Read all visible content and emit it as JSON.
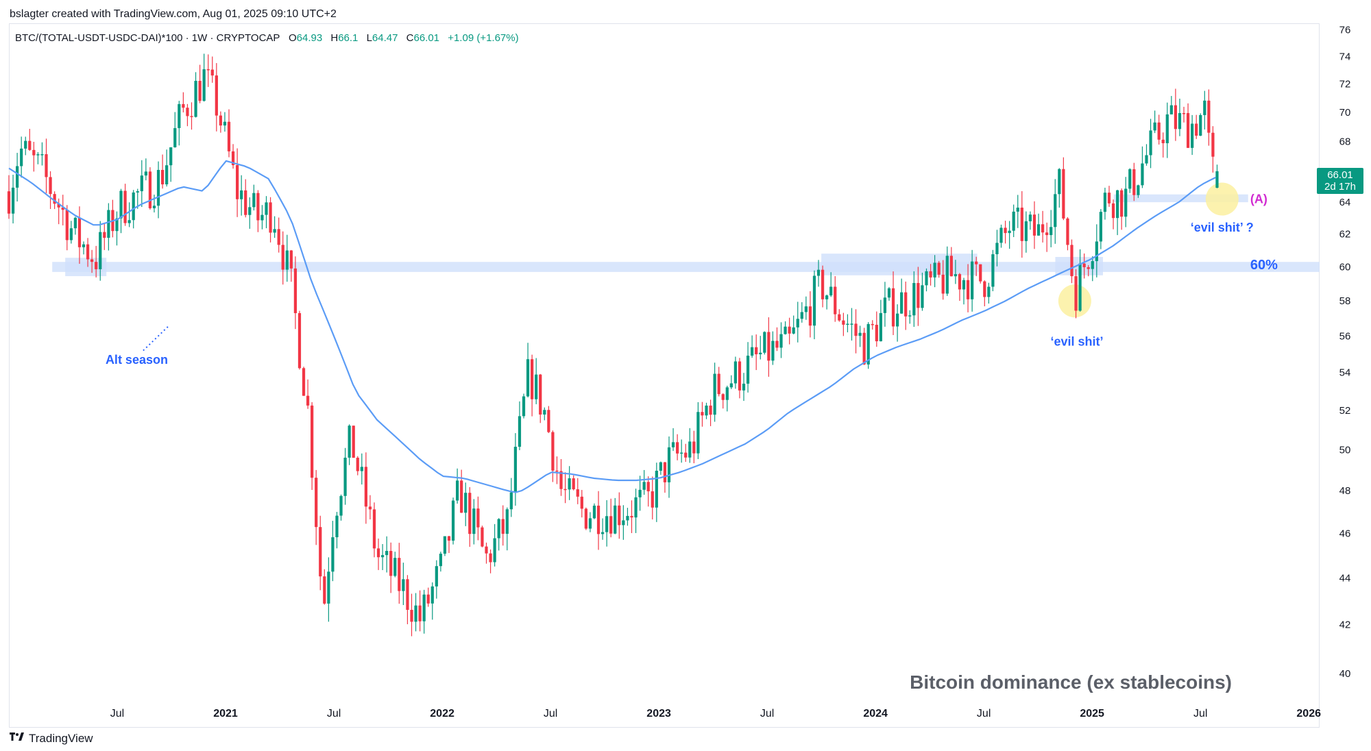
{
  "header": {
    "credit": "bslagter created with TradingView.com, Aug 01, 2025 09:10 UTC+2",
    "symbol_line": "BTC/(TOTAL-USDT-USDC-DAI)*100 · 1W · CRYPTOCAP",
    "ohlc": {
      "o_label": "O",
      "o": "64.93",
      "h_label": "H",
      "h": "66.1",
      "l_label": "L",
      "l": "64.47",
      "c_label": "C",
      "c": "66.01",
      "change": "+1.09 (+1.67%)"
    }
  },
  "price_tag": {
    "price": "66.01",
    "countdown": "2d 17h"
  },
  "brand": {
    "name": "TradingView"
  },
  "colors": {
    "up": "#089981",
    "down": "#f23645",
    "ma": "#5b9cf6",
    "zone": "#cfe0fb",
    "highlight": "#fbf0a0",
    "annotation": "#2962ff",
    "magenta": "#d12bd1",
    "title": "#5b5f68"
  },
  "chart_data": {
    "type": "candlestick",
    "title": "Bitcoin dominance (ex stablecoins)",
    "ylim": [
      39,
      76.5
    ],
    "y_ticks": [
      40,
      42,
      44,
      46,
      48,
      50,
      52,
      54,
      56,
      58,
      60,
      62,
      64,
      66,
      68,
      70,
      72,
      74,
      76
    ],
    "log_scale": true,
    "x_tick_labels": [
      "Jul",
      "2021",
      "Jul",
      "2022",
      "Jul",
      "2023",
      "Jul",
      "2024",
      "Jul",
      "2025",
      "Jul",
      "2026"
    ],
    "x_tick_years": [
      2020.5,
      2021.0,
      2021.5,
      2022.0,
      2022.5,
      2023.0,
      2023.5,
      2024.0,
      2024.5,
      2025.0,
      2025.5,
      2026.0
    ],
    "x_tick_bold": [
      false,
      true,
      false,
      true,
      false,
      true,
      false,
      true,
      false,
      true,
      false,
      true
    ],
    "x_range_years": [
      2020.0,
      2026.05
    ],
    "path_anchors": [
      [
        2020.0,
        64.7
      ],
      [
        2020.05,
        67.5
      ],
      [
        2020.15,
        66.0
      ],
      [
        2020.3,
        62.0
      ],
      [
        2020.4,
        60.5
      ],
      [
        2020.5,
        63.5
      ],
      [
        2020.6,
        64.5
      ],
      [
        2020.7,
        65.5
      ],
      [
        2020.8,
        70.0
      ],
      [
        2020.9,
        72.5
      ],
      [
        2020.96,
        70.5
      ],
      [
        2021.05,
        64.8
      ],
      [
        2021.15,
        63.0
      ],
      [
        2021.22,
        63.5
      ],
      [
        2021.3,
        59.0
      ],
      [
        2021.38,
        52.0
      ],
      [
        2021.45,
        42.5
      ],
      [
        2021.5,
        47.0
      ],
      [
        2021.58,
        50.5
      ],
      [
        2021.7,
        45.0
      ],
      [
        2021.82,
        43.5
      ],
      [
        2021.9,
        42.2
      ],
      [
        2022.0,
        44.5
      ],
      [
        2022.08,
        48.0
      ],
      [
        2022.2,
        44.8
      ],
      [
        2022.3,
        46.5
      ],
      [
        2022.4,
        54.0
      ],
      [
        2022.47,
        52.0
      ],
      [
        2022.55,
        48.0
      ],
      [
        2022.65,
        47.0
      ],
      [
        2022.8,
        47.0
      ],
      [
        2022.95,
        47.5
      ],
      [
        2023.05,
        49.5
      ],
      [
        2023.15,
        50.0
      ],
      [
        2023.25,
        53.0
      ],
      [
        2023.38,
        54.0
      ],
      [
        2023.48,
        55.0
      ],
      [
        2023.6,
        55.5
      ],
      [
        2023.75,
        59.0
      ],
      [
        2023.85,
        57.0
      ],
      [
        2023.95,
        55.5
      ],
      [
        2024.05,
        57.5
      ],
      [
        2024.2,
        58.5
      ],
      [
        2024.35,
        59.5
      ],
      [
        2024.5,
        59.2
      ],
      [
        2024.62,
        62.5
      ],
      [
        2024.75,
        62.0
      ],
      [
        2024.85,
        65.0
      ],
      [
        2024.92,
        58.5
      ],
      [
        2025.0,
        61.5
      ],
      [
        2025.07,
        64.5
      ],
      [
        2025.15,
        64.2
      ],
      [
        2025.25,
        67.0
      ],
      [
        2025.35,
        69.5
      ],
      [
        2025.45,
        69.0
      ],
      [
        2025.52,
        70.0
      ],
      [
        2025.55,
        66.0
      ],
      [
        2025.57,
        66.0
      ]
    ],
    "moving_average": {
      "period_weeks": 50,
      "anchors": [
        [
          2020.0,
          66.2
        ],
        [
          2020.1,
          65.3
        ],
        [
          2020.2,
          64.2
        ],
        [
          2020.3,
          63.2
        ],
        [
          2020.4,
          62.5
        ],
        [
          2020.5,
          62.9
        ],
        [
          2020.6,
          63.8
        ],
        [
          2020.7,
          64.4
        ],
        [
          2020.8,
          65.0
        ],
        [
          2020.9,
          64.7
        ],
        [
          2021.0,
          66.7
        ],
        [
          2021.1,
          66.3
        ],
        [
          2021.2,
          65.5
        ],
        [
          2021.3,
          63.0
        ],
        [
          2021.4,
          59.0
        ],
        [
          2021.5,
          56.0
        ],
        [
          2021.6,
          53.0
        ],
        [
          2021.7,
          51.5
        ],
        [
          2021.8,
          50.5
        ],
        [
          2021.9,
          49.5
        ],
        [
          2022.0,
          48.7
        ],
        [
          2022.1,
          48.6
        ],
        [
          2022.2,
          48.3
        ],
        [
          2022.3,
          48.0
        ],
        [
          2022.35,
          47.9
        ],
        [
          2022.4,
          48.2
        ],
        [
          2022.5,
          48.9
        ],
        [
          2022.6,
          48.8
        ],
        [
          2022.7,
          48.6
        ],
        [
          2022.8,
          48.5
        ],
        [
          2022.9,
          48.5
        ],
        [
          2023.0,
          48.6
        ],
        [
          2023.1,
          48.9
        ],
        [
          2023.2,
          49.3
        ],
        [
          2023.3,
          49.8
        ],
        [
          2023.4,
          50.3
        ],
        [
          2023.5,
          51.0
        ],
        [
          2023.6,
          51.9
        ],
        [
          2023.7,
          52.6
        ],
        [
          2023.8,
          53.3
        ],
        [
          2023.9,
          54.2
        ],
        [
          2024.0,
          54.9
        ],
        [
          2024.1,
          55.4
        ],
        [
          2024.2,
          55.8
        ],
        [
          2024.3,
          56.3
        ],
        [
          2024.4,
          56.9
        ],
        [
          2024.5,
          57.4
        ],
        [
          2024.6,
          58.0
        ],
        [
          2024.7,
          58.7
        ],
        [
          2024.8,
          59.3
        ],
        [
          2024.9,
          59.9
        ],
        [
          2025.0,
          60.5
        ],
        [
          2025.1,
          61.3
        ],
        [
          2025.2,
          62.3
        ],
        [
          2025.3,
          63.2
        ],
        [
          2025.4,
          64.0
        ],
        [
          2025.5,
          65.1
        ],
        [
          2025.57,
          65.6
        ]
      ]
    },
    "zones": [
      {
        "name": "zone-60-left",
        "x0": 2020.2,
        "x1": 2026.05,
        "y0": 59.7,
        "y1": 60.3
      },
      {
        "name": "zone-2020-touch",
        "x0": 2020.26,
        "x1": 2020.45,
        "y0": 59.45,
        "y1": 60.55
      },
      {
        "name": "zone-2024-range",
        "x0": 2023.75,
        "x1": 2024.47,
        "y0": 59.5,
        "y1": 60.8
      },
      {
        "name": "zone-2024-dec",
        "x0": 2024.83,
        "x1": 2025.05,
        "y0": 59.5,
        "y1": 60.6
      },
      {
        "name": "zone-a",
        "x0": 2025.1,
        "x1": 2025.72,
        "y0": 64.0,
        "y1": 64.5
      }
    ],
    "highlights": [
      {
        "name": "evil-highlight-2024",
        "x": 2024.92,
        "y": 58.0
      },
      {
        "name": "evil-highlight-2025",
        "x": 2025.6,
        "y": 64.2
      }
    ],
    "annotations": [
      {
        "name": "label-alt-season",
        "text": "Alt season",
        "x": 2020.59,
        "y": 54.7
      },
      {
        "name": "label-evil-1",
        "text": "‘evil shit’",
        "x": 2024.93,
        "y": 55.7
      },
      {
        "name": "label-evil-2",
        "text": "‘evil shit’ ?",
        "x": 2025.6,
        "y": 62.4
      },
      {
        "name": "label-a",
        "text": "(A)",
        "x": 2025.73,
        "y": 64.2
      },
      {
        "name": "label-60pct",
        "text": "60%",
        "x": 2025.73,
        "y": 60.1
      }
    ],
    "last_price": 66.01
  }
}
